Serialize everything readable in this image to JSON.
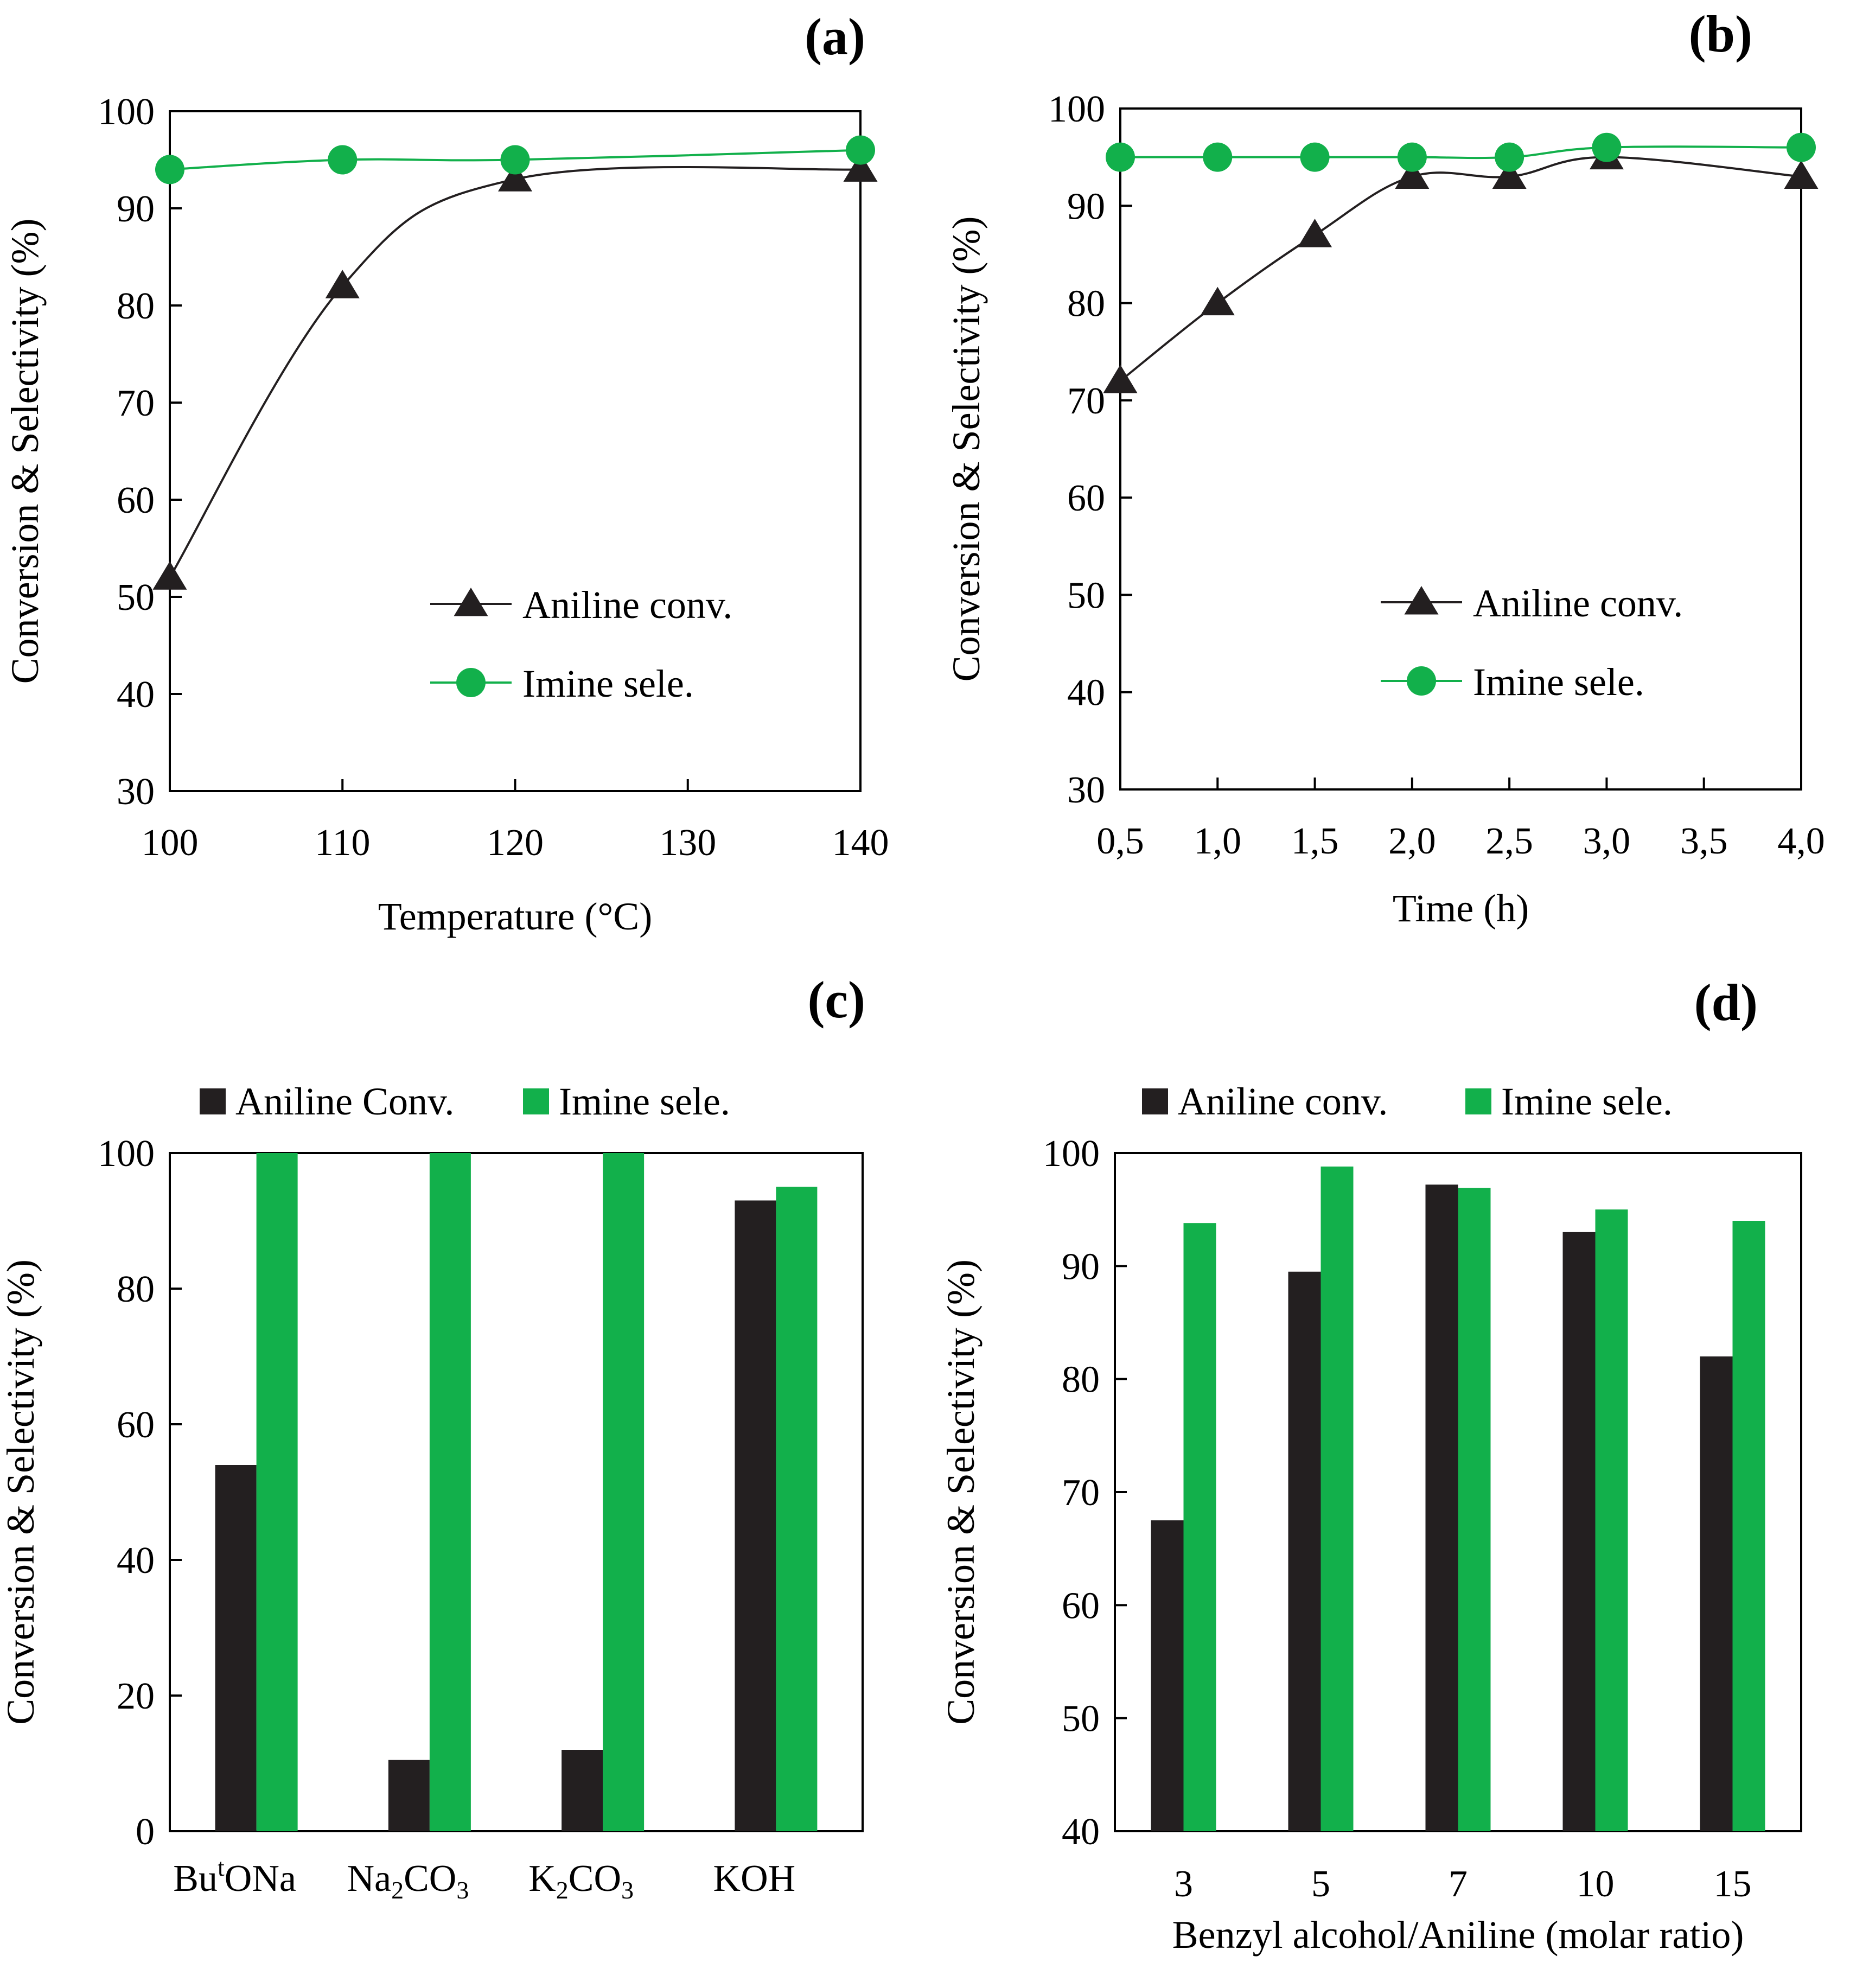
{
  "colors": {
    "conversion": "#231f20",
    "selectivity": "#12b04b",
    "axis": "#000000"
  },
  "chart_data": [
    {
      "panel": "(a)",
      "type": "line",
      "xlabel": "Temperature (°C)",
      "ylabel": "Conversion & Selectivity (%)",
      "xlim": [
        100,
        140
      ],
      "ylim": [
        30,
        100
      ],
      "xticks": [
        "100",
        "110",
        "120",
        "130",
        "140"
      ],
      "yticks": [
        "30",
        "40",
        "50",
        "60",
        "70",
        "80",
        "90",
        "100"
      ],
      "grid": false,
      "legend_position": "bottom-right",
      "series": [
        {
          "name": "Aniline conv.",
          "marker": "triangle",
          "color": "#231f20",
          "x": [
            100,
            110,
            120,
            140
          ],
          "y": [
            52,
            82,
            93,
            94
          ]
        },
        {
          "name": "Imine sele.",
          "marker": "circle",
          "color": "#12b04b",
          "x": [
            100,
            110,
            120,
            140
          ],
          "y": [
            94,
            95,
            95,
            96
          ]
        }
      ]
    },
    {
      "panel": "(b)",
      "type": "line",
      "xlabel": "Time (h)",
      "ylabel": "Conversion & Selectivity (%)",
      "categories": [
        "0,5",
        "1,0",
        "1,5",
        "2,0",
        "2,5",
        "3,0",
        "3,5",
        "4,0"
      ],
      "ylim": [
        30,
        100
      ],
      "yticks": [
        "30",
        "40",
        "50",
        "60",
        "70",
        "80",
        "90",
        "100"
      ],
      "grid": false,
      "legend_position": "bottom-right",
      "series": [
        {
          "name": "Aniline conv.",
          "marker": "triangle",
          "color": "#231f20",
          "x": [
            "0,5",
            "1,0",
            "1,5",
            "2,0",
            "2,5",
            "3,0",
            "4,0"
          ],
          "y": [
            72,
            80,
            87,
            93,
            93,
            95,
            93
          ]
        },
        {
          "name": "Imine sele.",
          "marker": "circle",
          "color": "#12b04b",
          "x": [
            "0,5",
            "1,0",
            "1,5",
            "2,0",
            "2,5",
            "3,0",
            "4,0"
          ],
          "y": [
            95,
            95,
            95,
            95,
            95,
            96,
            96
          ]
        }
      ]
    },
    {
      "panel": "(c)",
      "type": "bar",
      "xlabel": "",
      "ylabel": "Conversion & Selectivity (%)",
      "categories": [
        {
          "base": "Bu",
          "sup": "t",
          "rest": "ONa"
        },
        {
          "base": "Na",
          "sub": "2",
          "mid": "CO",
          "sub2": "3"
        },
        {
          "base": "K",
          "sub": "2",
          "mid": "CO",
          "sub2": "3"
        },
        {
          "base": "KOH"
        }
      ],
      "ylim": [
        0,
        100
      ],
      "yticks": [
        "0",
        "20",
        "40",
        "60",
        "80",
        "100"
      ],
      "grid": false,
      "legend_position": "top",
      "series": [
        {
          "name": "Aniline Conv.",
          "color": "#231f20",
          "values": [
            54,
            10.5,
            12,
            93
          ]
        },
        {
          "name": "Imine sele.",
          "color": "#12b04b",
          "values": [
            100,
            100,
            100,
            95
          ]
        }
      ]
    },
    {
      "panel": "(d)",
      "type": "bar",
      "xlabel": "Benzyl alcohol/Aniline (molar ratio)",
      "ylabel": "Conversion & Selectivity (%)",
      "categories": [
        "3",
        "5",
        "7",
        "10",
        "15"
      ],
      "ylim": [
        40,
        100
      ],
      "yticks": [
        "40",
        "50",
        "60",
        "70",
        "80",
        "90",
        "100"
      ],
      "grid": false,
      "legend_position": "top",
      "series": [
        {
          "name": "Aniline conv.",
          "color": "#231f20",
          "values": [
            67.5,
            89.5,
            97.2,
            93,
            82
          ]
        },
        {
          "name": "Imine sele.",
          "color": "#12b04b",
          "values": [
            93.8,
            98.8,
            96.9,
            95,
            94
          ]
        }
      ]
    }
  ]
}
